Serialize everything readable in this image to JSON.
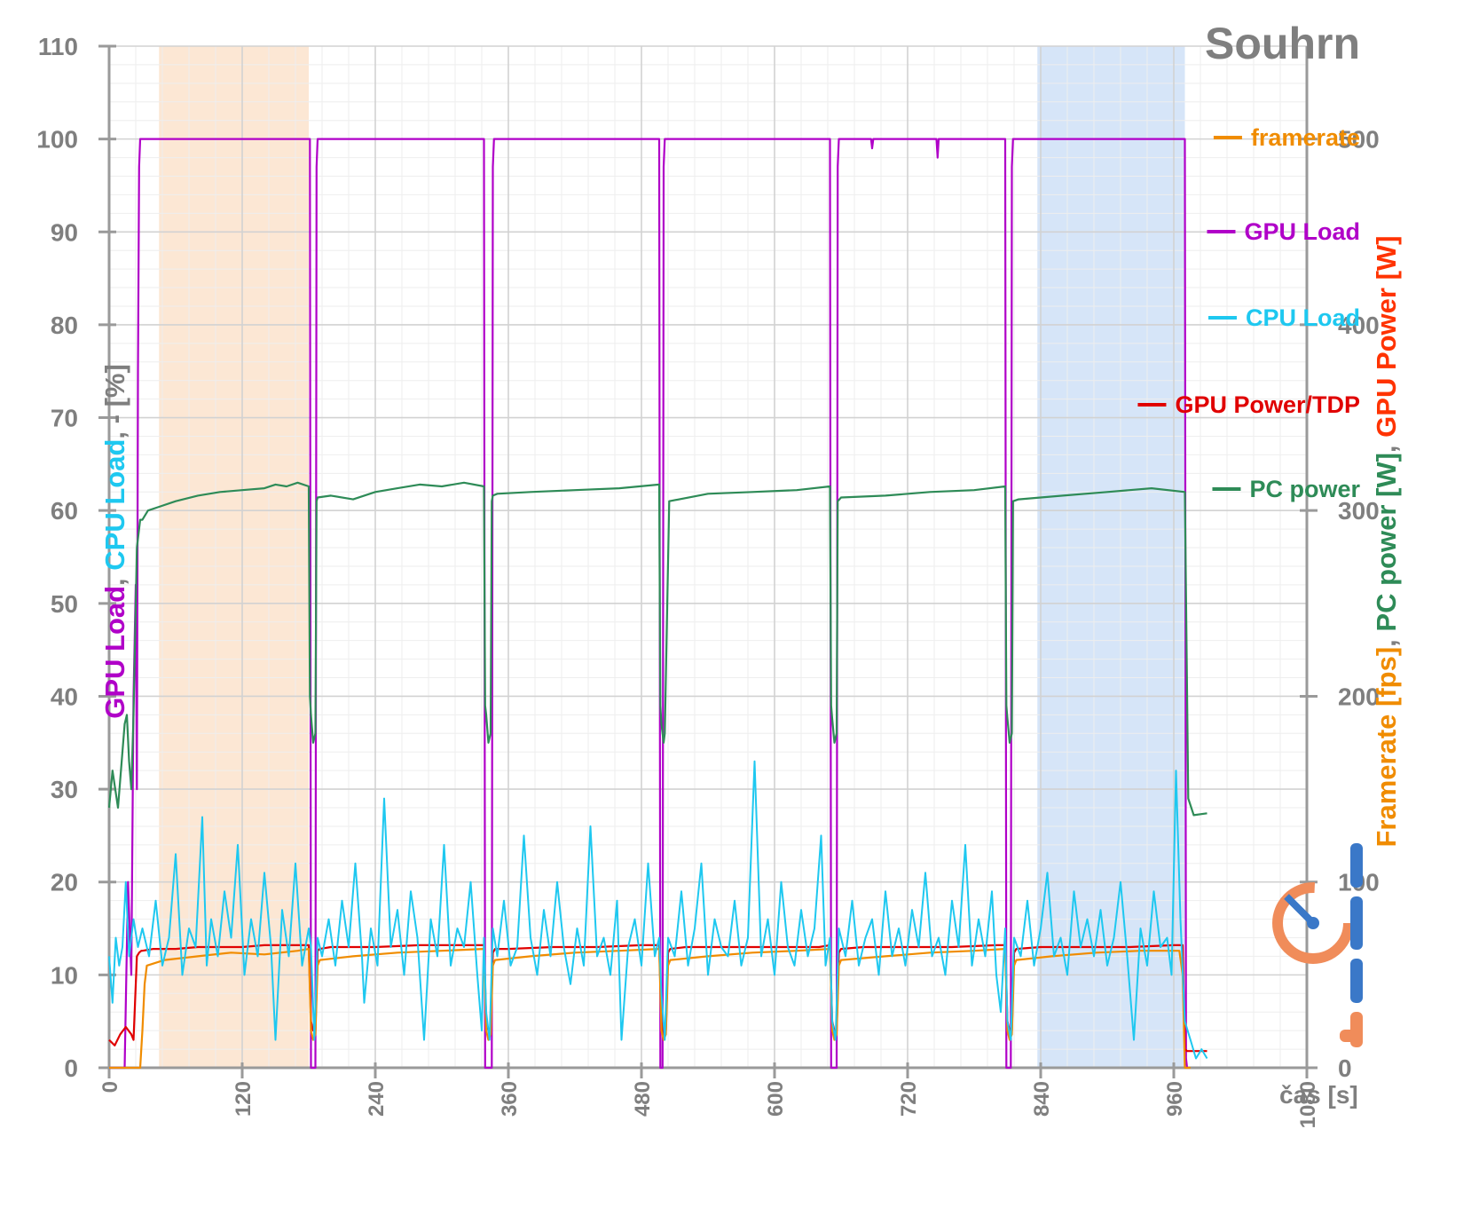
{
  "chart_data": {
    "type": "line",
    "title": "Souhrn",
    "xlabel": "čas [s]",
    "ylabel_left": {
      "parts": [
        {
          "text": "GPU Load",
          "color": "#b000c8"
        },
        {
          "text": ", ",
          "color": "#7f7f7f"
        },
        {
          "text": "CPU Load",
          "color": "#1ec8f0"
        },
        {
          "text": ", - [%]",
          "color": "#7f7f7f"
        }
      ]
    },
    "ylabel_right": {
      "parts": [
        {
          "text": "Framerate [fps]",
          "color": "#f08c00"
        },
        {
          "text": ", ",
          "color": "#7f7f7f"
        },
        {
          "text": "PC power [W]",
          "color": "#2e8b57"
        },
        {
          "text": ", ",
          "color": "#7f7f7f"
        },
        {
          "text": "GPU Power [W]",
          "color": "#ff3300"
        }
      ]
    },
    "xlim": [
      0,
      1080
    ],
    "ylim_left": [
      0,
      110
    ],
    "ylim_right": [
      0,
      550
    ],
    "x_ticks": [
      0,
      120,
      240,
      360,
      480,
      600,
      720,
      840,
      960,
      1080
    ],
    "y_ticks_left": [
      0,
      10,
      20,
      30,
      40,
      50,
      60,
      70,
      80,
      90,
      100,
      110
    ],
    "y_ticks_right": [
      0,
      100,
      200,
      300,
      400,
      500
    ],
    "grid": true,
    "legend_position": "right",
    "highlight_regions": [
      {
        "from": 45,
        "to": 180,
        "color": "#fbe3cc"
      },
      {
        "from": 837,
        "to": 970,
        "color": "#cfe1f7"
      }
    ],
    "legend": [
      {
        "name": "framerate",
        "color": "#f08c00"
      },
      {
        "name": "GPU Load",
        "color": "#b000c8"
      },
      {
        "name": "CPU Load",
        "color": "#1ec8f0"
      },
      {
        "name": "GPU Power/TDP",
        "color": "#e00000"
      },
      {
        "name": "PC power",
        "color": "#2e8b57"
      }
    ],
    "series": [
      {
        "name": "GPU Load",
        "axis": "left",
        "color": "#b000c8",
        "x": [
          0,
          14,
          17,
          20,
          22,
          24,
          25,
          26,
          27,
          28,
          181,
          182,
          186,
          187,
          188,
          338,
          339,
          345,
          346,
          347,
          496,
          497,
          499,
          500,
          501,
          650,
          651,
          656,
          657,
          658,
          687,
          688,
          689,
          746,
          747,
          748,
          808,
          809,
          813,
          814,
          815,
          970,
          971,
          972
        ],
        "y": [
          0,
          0,
          20,
          10,
          40,
          52,
          30,
          75,
          97,
          100,
          100,
          0,
          0,
          97,
          100,
          100,
          0,
          0,
          97,
          100,
          100,
          0,
          0,
          97,
          100,
          100,
          0,
          0,
          97,
          100,
          100,
          99,
          100,
          100,
          98,
          100,
          100,
          0,
          0,
          97,
          100,
          100,
          1,
          0
        ]
      },
      {
        "name": "PC power",
        "axis": "right",
        "color": "#2e8b57",
        "x": [
          0,
          3,
          8,
          14,
          16,
          18,
          20,
          22,
          25,
          28,
          30,
          35,
          45,
          60,
          80,
          100,
          120,
          140,
          150,
          160,
          170,
          180,
          181,
          182,
          184,
          186,
          187,
          188,
          200,
          220,
          240,
          260,
          280,
          300,
          320,
          338,
          339,
          340,
          342,
          344,
          345,
          346,
          350,
          380,
          420,
          460,
          496,
          497,
          498,
          500,
          501,
          505,
          540,
          580,
          620,
          650,
          651,
          652,
          654,
          656,
          657,
          660,
          700,
          740,
          780,
          808,
          809,
          810,
          812,
          814,
          815,
          820,
          860,
          900,
          940,
          970,
          973,
          978,
          990
        ],
        "y": [
          140,
          160,
          140,
          185,
          190,
          165,
          150,
          190,
          280,
          295,
          295,
          300,
          302,
          305,
          308,
          310,
          311,
          312,
          314,
          313,
          315,
          313,
          200,
          190,
          175,
          180,
          305,
          307,
          308,
          306,
          310,
          312,
          314,
          313,
          315,
          313,
          195,
          190,
          175,
          180,
          305,
          308,
          309,
          310,
          311,
          312,
          314,
          195,
          185,
          175,
          180,
          305,
          309,
          310,
          311,
          313,
          195,
          188,
          175,
          180,
          305,
          307,
          308,
          310,
          311,
          313,
          195,
          188,
          175,
          180,
          305,
          306,
          308,
          310,
          312,
          310,
          145,
          136,
          137
        ]
      },
      {
        "name": "GPU Power/TDP",
        "axis": "right",
        "color": "#e00000",
        "x": [
          0,
          5,
          10,
          15,
          20,
          22,
          25,
          27,
          29,
          30,
          40,
          60,
          80,
          100,
          120,
          140,
          160,
          175,
          180,
          182,
          184,
          186,
          188,
          190,
          200,
          240,
          280,
          320,
          338,
          340,
          342,
          344,
          346,
          348,
          360,
          400,
          440,
          480,
          496,
          498,
          500,
          502,
          504,
          506,
          520,
          560,
          600,
          640,
          650,
          652,
          654,
          656,
          658,
          660,
          680,
          720,
          760,
          800,
          808,
          810,
          812,
          814,
          816,
          818,
          840,
          880,
          920,
          960,
          968,
          970,
          972,
          990
        ],
        "y": [
          15,
          12,
          18,
          22,
          18,
          15,
          60,
          62,
          63,
          63,
          64,
          64,
          65,
          65,
          65,
          66,
          66,
          66,
          66,
          25,
          20,
          20,
          63,
          64,
          65,
          65,
          66,
          66,
          66,
          25,
          20,
          20,
          62,
          64,
          64,
          65,
          65,
          66,
          66,
          25,
          18,
          20,
          62,
          64,
          65,
          65,
          65,
          65,
          66,
          25,
          20,
          20,
          62,
          64,
          65,
          65,
          65,
          66,
          66,
          25,
          20,
          20,
          62,
          64,
          65,
          65,
          65,
          66,
          66,
          10,
          9,
          9
        ]
      },
      {
        "name": "framerate",
        "axis": "right",
        "color": "#f08c00",
        "x": [
          0,
          28,
          30,
          32,
          34,
          50,
          80,
          110,
          140,
          170,
          180,
          182,
          184,
          186,
          188,
          190,
          220,
          260,
          300,
          338,
          340,
          342,
          344,
          346,
          348,
          380,
          420,
          460,
          496,
          498,
          500,
          502,
          504,
          506,
          540,
          580,
          620,
          650,
          652,
          654,
          656,
          658,
          660,
          700,
          740,
          780,
          808,
          810,
          812,
          814,
          816,
          818,
          850,
          890,
          930,
          965,
          968,
          970,
          975
        ],
        "y": [
          0,
          0,
          20,
          45,
          55,
          58,
          60,
          62,
          61,
          63,
          64,
          20,
          15,
          18,
          55,
          58,
          60,
          62,
          63,
          64,
          20,
          15,
          18,
          55,
          58,
          60,
          62,
          63,
          64,
          20,
          15,
          18,
          55,
          58,
          60,
          62,
          63,
          64,
          20,
          15,
          18,
          55,
          58,
          60,
          62,
          63,
          64,
          20,
          15,
          18,
          55,
          58,
          60,
          62,
          63,
          63,
          50,
          0,
          0
        ]
      },
      {
        "name": "CPU Load",
        "axis": "left",
        "color": "#1ec8f0",
        "x": [
          0,
          3,
          6,
          9,
          12,
          15,
          18,
          22,
          26,
          30,
          36,
          42,
          48,
          54,
          60,
          66,
          72,
          78,
          84,
          88,
          92,
          98,
          104,
          110,
          116,
          122,
          128,
          134,
          140,
          146,
          150,
          156,
          162,
          168,
          174,
          180,
          182,
          185,
          188,
          192,
          198,
          204,
          210,
          216,
          222,
          228,
          230,
          236,
          242,
          248,
          254,
          260,
          266,
          272,
          278,
          284,
          290,
          296,
          302,
          308,
          314,
          320,
          326,
          332,
          336,
          338,
          340,
          343,
          346,
          350,
          356,
          362,
          368,
          374,
          380,
          386,
          392,
          398,
          404,
          410,
          416,
          422,
          428,
          434,
          440,
          446,
          452,
          458,
          462,
          468,
          474,
          480,
          486,
          492,
          496,
          498,
          501,
          504,
          510,
          516,
          522,
          528,
          534,
          540,
          546,
          552,
          558,
          564,
          570,
          576,
          582,
          588,
          594,
          600,
          606,
          612,
          618,
          624,
          630,
          636,
          642,
          646,
          650,
          652,
          655,
          658,
          664,
          670,
          676,
          682,
          688,
          694,
          700,
          706,
          712,
          718,
          724,
          730,
          736,
          742,
          748,
          754,
          760,
          766,
          772,
          778,
          784,
          790,
          796,
          800,
          804,
          808,
          810,
          813,
          816,
          822,
          828,
          834,
          840,
          846,
          852,
          858,
          864,
          870,
          876,
          882,
          888,
          894,
          900,
          906,
          912,
          918,
          924,
          930,
          936,
          942,
          948,
          954,
          958,
          962,
          966,
          970,
          975,
          980,
          985,
          990
        ],
        "y": [
          12,
          7,
          14,
          11,
          13,
          20,
          12,
          16,
          13,
          15,
          12,
          18,
          11,
          14,
          23,
          10,
          15,
          13,
          27,
          11,
          16,
          12,
          19,
          14,
          24,
          10,
          16,
          12,
          21,
          13,
          3,
          17,
          12,
          22,
          11,
          15,
          13,
          3,
          14,
          12,
          16,
          11,
          18,
          13,
          22,
          12,
          7,
          15,
          11,
          29,
          13,
          17,
          10,
          19,
          14,
          3,
          16,
          12,
          24,
          11,
          15,
          13,
          20,
          10,
          4,
          14,
          6,
          3,
          15,
          12,
          18,
          11,
          13,
          25,
          14,
          10,
          17,
          12,
          20,
          13,
          9,
          15,
          11,
          26,
          12,
          14,
          10,
          18,
          3,
          13,
          16,
          11,
          22,
          12,
          14,
          8,
          3,
          14,
          12,
          19,
          11,
          15,
          22,
          10,
          16,
          13,
          12,
          18,
          11,
          14,
          33,
          12,
          16,
          10,
          20,
          13,
          11,
          17,
          12,
          15,
          25,
          11,
          14,
          5,
          3,
          15,
          12,
          18,
          11,
          14,
          16,
          10,
          19,
          12,
          15,
          11,
          17,
          13,
          21,
          12,
          14,
          10,
          18,
          13,
          24,
          11,
          16,
          12,
          19,
          10,
          6,
          15,
          5,
          3,
          14,
          12,
          18,
          11,
          15,
          21,
          12,
          14,
          10,
          19,
          13,
          16,
          12,
          17,
          11,
          14,
          20,
          12,
          3,
          15,
          11,
          19,
          13,
          14,
          10,
          32,
          16,
          5,
          3,
          1,
          2,
          1
        ]
      }
    ]
  }
}
